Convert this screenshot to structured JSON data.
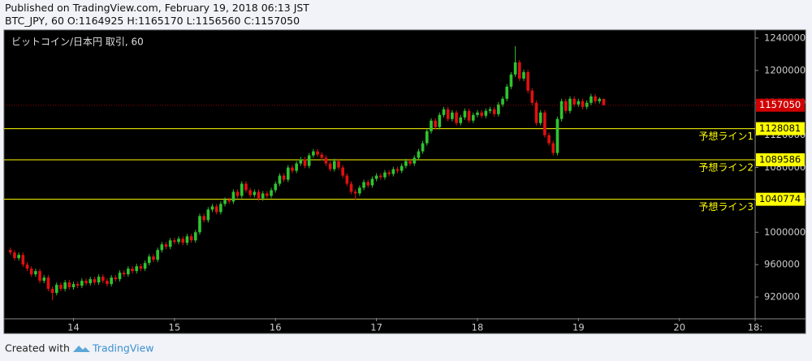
{
  "header": {
    "published": "Published on TradingView.com, February 19, 2018 06:13 JST",
    "ohlc": "BTC_JPY, 60 O:1164925 H:1165170 L:1156560 C:1157050"
  },
  "footer": {
    "created_with": "Created with",
    "brand": "TradingView"
  },
  "chart_data": {
    "type": "candlestick",
    "title": "ビットコイン/日本円 取引, 60",
    "up_color": "#2fc42f",
    "down_color": "#e01010",
    "last_color": "#d00000",
    "grid": false,
    "ylim": [
      894000,
      1249000
    ],
    "yticks": [
      920000,
      960000,
      1000000,
      1040000,
      1080000,
      1120000,
      1160000,
      1200000,
      1240000
    ],
    "xlim": [
      -1.5,
      177
    ],
    "xticks": [
      {
        "value": 15,
        "label": "14"
      },
      {
        "value": 39,
        "label": "15"
      },
      {
        "value": 63,
        "label": "16"
      },
      {
        "value": 87,
        "label": "17"
      },
      {
        "value": 111,
        "label": "18"
      },
      {
        "value": 135,
        "label": "19"
      },
      {
        "value": 159,
        "label": "20"
      },
      {
        "value": 177,
        "label": "18:"
      }
    ],
    "levels": [
      {
        "value": 1128081,
        "label": "予想ライン1",
        "color": "#ffff00"
      },
      {
        "value": 1089586,
        "label": "予想ライン2",
        "color": "#ffff00"
      },
      {
        "value": 1040774,
        "label": "予想ライン3",
        "color": "#ffff00"
      }
    ],
    "ohlc": [
      [
        978000,
        981000,
        972000,
        975000
      ],
      [
        975000,
        978000,
        965000,
        968000
      ],
      [
        968000,
        975000,
        965000,
        972000
      ],
      [
        972000,
        975000,
        957000,
        960000
      ],
      [
        960000,
        963000,
        952000,
        955000
      ],
      [
        955000,
        958000,
        945000,
        948000
      ],
      [
        948000,
        955000,
        945000,
        952000
      ],
      [
        952000,
        955000,
        937000,
        940000
      ],
      [
        940000,
        947000,
        937000,
        944000
      ],
      [
        944000,
        947000,
        927000,
        930000
      ],
      [
        930000,
        933000,
        916000,
        925000
      ],
      [
        925000,
        938000,
        922000,
        935000
      ],
      [
        935000,
        938000,
        927000,
        930000
      ],
      [
        930000,
        941000,
        927000,
        938000
      ],
      [
        938000,
        941000,
        929000,
        932000
      ],
      [
        932000,
        939000,
        929000,
        936000
      ],
      [
        936000,
        939000,
        931000,
        934000
      ],
      [
        934000,
        943000,
        931000,
        940000
      ],
      [
        940000,
        943000,
        934000,
        937000
      ],
      [
        937000,
        945000,
        934000,
        942000
      ],
      [
        942000,
        945000,
        935000,
        938000
      ],
      [
        938000,
        948000,
        935000,
        945000
      ],
      [
        945000,
        948000,
        937000,
        940000
      ],
      [
        940000,
        943000,
        933000,
        936000
      ],
      [
        936000,
        947000,
        933000,
        944000
      ],
      [
        944000,
        947000,
        939000,
        942000
      ],
      [
        942000,
        953000,
        939000,
        950000
      ],
      [
        950000,
        953000,
        945000,
        948000
      ],
      [
        948000,
        958000,
        945000,
        955000
      ],
      [
        955000,
        958000,
        949000,
        952000
      ],
      [
        952000,
        961000,
        949000,
        958000
      ],
      [
        958000,
        961000,
        952000,
        955000
      ],
      [
        955000,
        965000,
        952000,
        962000
      ],
      [
        962000,
        973000,
        959000,
        970000
      ],
      [
        970000,
        973000,
        963000,
        966000
      ],
      [
        966000,
        981000,
        963000,
        978000
      ],
      [
        978000,
        988000,
        975000,
        985000
      ],
      [
        985000,
        988000,
        979000,
        982000
      ],
      [
        982000,
        993000,
        979000,
        990000
      ],
      [
        990000,
        993000,
        985000,
        988000
      ],
      [
        988000,
        995000,
        985000,
        992000
      ],
      [
        992000,
        995000,
        984000,
        987000
      ],
      [
        987000,
        998000,
        984000,
        995000
      ],
      [
        995000,
        998000,
        987000,
        990000
      ],
      [
        990000,
        1003000,
        987000,
        1000000
      ],
      [
        1000000,
        1023000,
        997000,
        1020000
      ],
      [
        1020000,
        1023000,
        1012000,
        1015000
      ],
      [
        1015000,
        1031000,
        1012000,
        1028000
      ],
      [
        1028000,
        1035000,
        1025000,
        1032000
      ],
      [
        1032000,
        1035000,
        1022000,
        1025000
      ],
      [
        1025000,
        1038000,
        1022000,
        1035000
      ],
      [
        1035000,
        1043000,
        1032000,
        1040000
      ],
      [
        1040000,
        1043000,
        1035000,
        1038000
      ],
      [
        1038000,
        1053000,
        1035000,
        1050000
      ],
      [
        1050000,
        1053000,
        1042000,
        1045000
      ],
      [
        1045000,
        1063000,
        1042000,
        1060000
      ],
      [
        1060000,
        1063000,
        1049000,
        1052000
      ],
      [
        1052000,
        1055000,
        1043000,
        1046000
      ],
      [
        1046000,
        1053000,
        1043000,
        1050000
      ],
      [
        1050000,
        1053000,
        1039000,
        1042000
      ],
      [
        1042000,
        1051000,
        1039000,
        1048000
      ],
      [
        1048000,
        1051000,
        1042000,
        1045000
      ],
      [
        1045000,
        1055000,
        1042000,
        1052000
      ],
      [
        1052000,
        1063000,
        1049000,
        1060000
      ],
      [
        1060000,
        1073000,
        1057000,
        1070000
      ],
      [
        1070000,
        1073000,
        1062000,
        1065000
      ],
      [
        1065000,
        1083000,
        1062000,
        1080000
      ],
      [
        1080000,
        1083000,
        1073000,
        1076000
      ],
      [
        1076000,
        1088000,
        1073000,
        1085000
      ],
      [
        1085000,
        1093000,
        1082000,
        1090000
      ],
      [
        1090000,
        1093000,
        1079000,
        1082000
      ],
      [
        1082000,
        1098000,
        1079000,
        1095000
      ],
      [
        1095000,
        1103000,
        1092000,
        1100000
      ],
      [
        1100000,
        1103000,
        1093000,
        1096000
      ],
      [
        1096000,
        1099000,
        1089000,
        1092000
      ],
      [
        1092000,
        1095000,
        1082000,
        1085000
      ],
      [
        1085000,
        1088000,
        1075000,
        1078000
      ],
      [
        1078000,
        1091000,
        1075000,
        1088000
      ],
      [
        1088000,
        1091000,
        1077000,
        1080000
      ],
      [
        1080000,
        1083000,
        1067000,
        1070000
      ],
      [
        1070000,
        1073000,
        1057000,
        1060000
      ],
      [
        1060000,
        1063000,
        1047000,
        1050000
      ],
      [
        1050000,
        1053000,
        1040000,
        1048000
      ],
      [
        1048000,
        1058000,
        1045000,
        1055000
      ],
      [
        1055000,
        1065000,
        1052000,
        1062000
      ],
      [
        1062000,
        1065000,
        1055000,
        1058000
      ],
      [
        1058000,
        1069000,
        1055000,
        1066000
      ],
      [
        1066000,
        1073000,
        1063000,
        1070000
      ],
      [
        1070000,
        1073000,
        1065000,
        1068000
      ],
      [
        1068000,
        1077000,
        1065000,
        1074000
      ],
      [
        1074000,
        1077000,
        1069000,
        1072000
      ],
      [
        1072000,
        1081000,
        1069000,
        1078000
      ],
      [
        1078000,
        1081000,
        1073000,
        1076000
      ],
      [
        1076000,
        1085000,
        1073000,
        1082000
      ],
      [
        1082000,
        1091000,
        1079000,
        1088000
      ],
      [
        1088000,
        1091000,
        1082000,
        1085000
      ],
      [
        1085000,
        1095000,
        1082000,
        1092000
      ],
      [
        1092000,
        1103000,
        1089000,
        1100000
      ],
      [
        1100000,
        1113000,
        1097000,
        1110000
      ],
      [
        1110000,
        1128000,
        1107000,
        1125000
      ],
      [
        1125000,
        1141000,
        1122000,
        1138000
      ],
      [
        1138000,
        1141000,
        1127000,
        1130000
      ],
      [
        1130000,
        1148000,
        1127000,
        1145000
      ],
      [
        1145000,
        1155000,
        1142000,
        1152000
      ],
      [
        1152000,
        1155000,
        1137000,
        1140000
      ],
      [
        1140000,
        1151000,
        1137000,
        1148000
      ],
      [
        1148000,
        1151000,
        1132000,
        1135000
      ],
      [
        1135000,
        1145000,
        1132000,
        1142000
      ],
      [
        1142000,
        1153000,
        1139000,
        1150000
      ],
      [
        1150000,
        1153000,
        1135000,
        1138000
      ],
      [
        1138000,
        1148000,
        1135000,
        1145000
      ],
      [
        1145000,
        1151000,
        1142000,
        1148000
      ],
      [
        1148000,
        1151000,
        1141000,
        1144000
      ],
      [
        1144000,
        1153000,
        1141000,
        1150000
      ],
      [
        1150000,
        1155000,
        1147000,
        1152000
      ],
      [
        1152000,
        1155000,
        1143000,
        1146000
      ],
      [
        1146000,
        1161000,
        1143000,
        1158000
      ],
      [
        1158000,
        1168000,
        1155000,
        1165000
      ],
      [
        1165000,
        1183000,
        1162000,
        1180000
      ],
      [
        1180000,
        1198000,
        1177000,
        1195000
      ],
      [
        1195000,
        1230000,
        1192000,
        1210000
      ],
      [
        1210000,
        1213000,
        1187000,
        1190000
      ],
      [
        1190000,
        1201000,
        1187000,
        1198000
      ],
      [
        1198000,
        1201000,
        1172000,
        1175000
      ],
      [
        1175000,
        1178000,
        1157000,
        1160000
      ],
      [
        1160000,
        1163000,
        1132000,
        1135000
      ],
      [
        1135000,
        1151000,
        1132000,
        1148000
      ],
      [
        1148000,
        1151000,
        1117000,
        1120000
      ],
      [
        1120000,
        1123000,
        1107000,
        1110000
      ],
      [
        1110000,
        1113000,
        1095000,
        1098000
      ],
      [
        1098000,
        1143000,
        1095000,
        1140000
      ],
      [
        1140000,
        1165000,
        1137000,
        1162000
      ],
      [
        1162000,
        1165000,
        1147000,
        1150000
      ],
      [
        1150000,
        1168000,
        1147000,
        1165000
      ],
      [
        1165000,
        1168000,
        1155000,
        1158000
      ],
      [
        1158000,
        1165000,
        1155000,
        1162000
      ],
      [
        1162000,
        1165000,
        1152000,
        1155000
      ],
      [
        1155000,
        1163000,
        1152000,
        1160000
      ],
      [
        1160000,
        1171000,
        1157000,
        1168000
      ],
      [
        1168000,
        1171000,
        1159000,
        1162000
      ],
      [
        1162000,
        1167000,
        1159000,
        1164925
      ],
      [
        1164925,
        1165170,
        1156560,
        1157050
      ]
    ]
  }
}
